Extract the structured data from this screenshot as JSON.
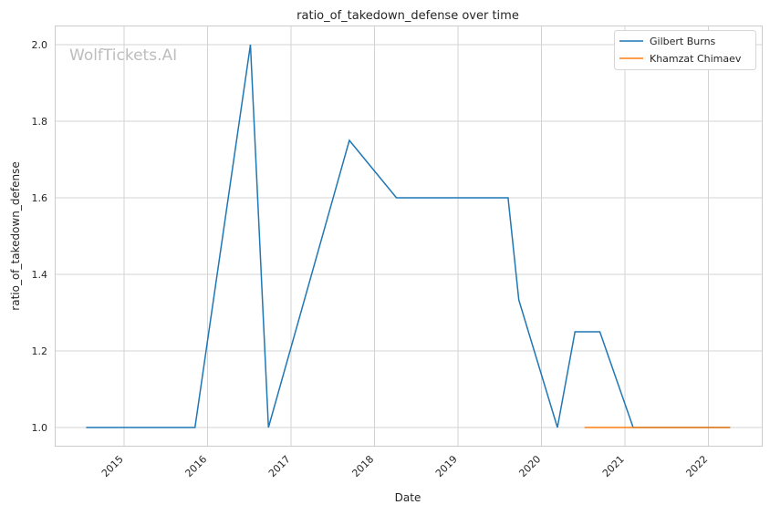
{
  "chart_data": {
    "type": "line",
    "title": "ratio_of_takedown_defense over time",
    "xlabel": "Date",
    "ylabel": "ratio_of_takedown_defense",
    "watermark": "WolfTickets.AI",
    "xticks": [
      "2015",
      "2016",
      "2017",
      "2018",
      "2019",
      "2020",
      "2021",
      "2022"
    ],
    "yticks": [
      "1.0",
      "1.2",
      "1.4",
      "1.6",
      "1.8",
      "2.0"
    ],
    "xlim": [
      "2014-02-01",
      "2022-08-10"
    ],
    "ylim": [
      0.95,
      2.05
    ],
    "grid": true,
    "legend": "top-right",
    "series": [
      {
        "name": "Gilbert Burns",
        "color": "#1f77b4",
        "x": [
          "2014-07-19",
          "2015-11-07",
          "2016-07-07",
          "2016-09-24",
          "2017-09-13",
          "2018-04-07",
          "2019-08-08",
          "2019-09-24",
          "2020-03-11",
          "2020-05-27",
          "2020-09-13",
          "2021-02-06",
          "2022-04-06"
        ],
        "y": [
          1.0,
          1.0,
          2.0,
          1.0,
          1.75,
          1.6,
          1.6,
          1.333,
          1.0,
          1.25,
          1.25,
          1.0,
          1.0
        ]
      },
      {
        "name": "Khamzat Chimaev",
        "color": "#ff7f0e",
        "x": [
          "2020-07-08",
          "2022-04-06"
        ],
        "y": [
          1.0,
          1.0
        ]
      }
    ]
  }
}
